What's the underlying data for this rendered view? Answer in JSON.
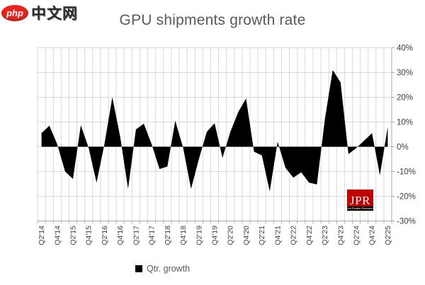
{
  "watermark": {
    "brand": "php",
    "brand_suffix": "中文网"
  },
  "header": {
    "title": "GPU shipments growth rate"
  },
  "legend": {
    "label": "Qtr. growth",
    "swatch_color": "#000000"
  },
  "jpr_logo": {
    "text": "JPR",
    "subtext": "Jon Peddie Research",
    "bg_color": "#c00000"
  },
  "colors": {
    "title": "#595959",
    "grid": "#d9d9d9",
    "axis": "#a6a6a6",
    "tick_label": "#404040",
    "series_fill": "#000000"
  },
  "chart_data": {
    "type": "area",
    "title": "GPU shipments growth rate",
    "legend_entries": [
      "Qtr. growth"
    ],
    "unit": "%",
    "ylim": [
      -30,
      40
    ],
    "y_ticks": [
      40,
      30,
      20,
      10,
      0,
      -10,
      -20,
      -30
    ],
    "y_tick_labels": [
      "40%",
      "30%",
      "20%",
      "10%",
      "0%",
      "-10%",
      "-20%",
      "-30%"
    ],
    "grid": true,
    "legend_position": "bottom",
    "x_label_every": 2,
    "categories": [
      "Q2'14",
      "Q3'14",
      "Q4'14",
      "Q1'15",
      "Q2'15",
      "Q3'15",
      "Q4'15",
      "Q1'16",
      "Q2'16",
      "Q3'16",
      "Q4'16",
      "Q1'17",
      "Q2'17",
      "Q3'17",
      "Q4'17",
      "Q1'18",
      "Q2'18",
      "Q3'18",
      "Q4'18",
      "Q1'19",
      "Q2'19",
      "Q3'19",
      "Q4'19",
      "Q1'20",
      "Q2'20",
      "Q3'20",
      "Q4'20",
      "Q1'21",
      "Q2'21",
      "Q3'21",
      "Q4'21",
      "Q1'22",
      "Q2'22",
      "Q3'22",
      "Q4'22",
      "Q1'23",
      "Q2'23",
      "Q3'23",
      "Q4'23",
      "Q1'24",
      "Q2'24",
      "Q3'24",
      "Q4'24",
      "Q1'25",
      "Q2'25"
    ],
    "values": [
      5.5,
      8.5,
      1,
      -10,
      -13,
      8.7,
      -0.5,
      -14.5,
      1,
      20,
      4,
      -17,
      7,
      9.3,
      1,
      -9,
      -8,
      10.5,
      -0.5,
      -17,
      -5,
      6,
      9.5,
      -4.5,
      6,
      14,
      19.5,
      -2,
      -3.5,
      -18,
      2,
      -8.5,
      -12.5,
      -10.3,
      -14.5,
      -15.2,
      11,
      31,
      26,
      -3,
      -0.5,
      2.5,
      5.5,
      -11.5,
      8
    ]
  }
}
